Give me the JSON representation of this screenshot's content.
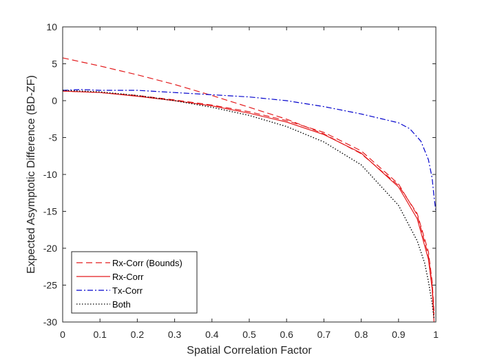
{
  "chart_data": {
    "type": "line",
    "title": "",
    "xlabel": "Spatial Correlation Factor",
    "ylabel": "Expected Asymptotic Difference (BD-ZF)",
    "xlim": [
      0,
      1
    ],
    "ylim": [
      -30,
      10
    ],
    "xticks": [
      0,
      0.1,
      0.2,
      0.3,
      0.4,
      0.5,
      0.6,
      0.7,
      0.8,
      0.9,
      1
    ],
    "xtick_labels": [
      "0",
      "0.1",
      "0.2",
      "0.3",
      "0.4",
      "0.5",
      "0.6",
      "0.7",
      "0.8",
      "0.9",
      "1"
    ],
    "yticks": [
      10,
      5,
      0,
      -5,
      -10,
      -15,
      -20,
      -25,
      -30
    ],
    "ytick_labels": [
      "10",
      "5",
      "0",
      "-5",
      "-10",
      "-15",
      "-20",
      "-25",
      "-30"
    ],
    "grid": false,
    "legend_position": "bottom-left",
    "series": [
      {
        "name": "Rx-Corr (Bounds)",
        "color": "#e31a1c",
        "style": "dashed",
        "x": [
          0,
          0.1,
          0.2,
          0.3,
          0.4,
          0.5,
          0.6,
          0.7,
          0.8,
          0.9,
          0.95,
          0.98,
          0.99,
          0.995
        ],
        "y": [
          5.8,
          4.7,
          3.5,
          2.2,
          0.7,
          -0.9,
          -2.5,
          -4.5,
          -7.2,
          -11.5,
          -15.3,
          -20.5,
          -24.5,
          -28.5
        ]
      },
      {
        "name": "Rx-Corr (Bounds)",
        "color": "#e31a1c",
        "style": "dashed",
        "x": [
          0,
          0.1,
          0.2,
          0.3,
          0.4,
          0.5,
          0.6,
          0.7,
          0.8,
          0.9,
          0.95,
          0.98,
          0.99,
          0.995
        ],
        "y": [
          1.3,
          1.1,
          0.7,
          0.1,
          -0.6,
          -1.5,
          -2.7,
          -4.3,
          -6.8,
          -11.3,
          -15.5,
          -21.0,
          -25.0,
          -29.0
        ]
      },
      {
        "name": "Rx-Corr",
        "color": "#e31a1c",
        "style": "solid",
        "x": [
          0,
          0.1,
          0.2,
          0.3,
          0.4,
          0.5,
          0.6,
          0.7,
          0.8,
          0.9,
          0.95,
          0.98,
          0.99,
          0.995
        ],
        "y": [
          1.3,
          1.1,
          0.6,
          0.0,
          -0.7,
          -1.7,
          -2.9,
          -4.6,
          -7.1,
          -11.7,
          -16.0,
          -21.5,
          -25.5,
          -30.0
        ]
      },
      {
        "name": "Tx-Corr",
        "color": "#0000cc",
        "style": "dashdot",
        "x": [
          0,
          0.05,
          0.1,
          0.2,
          0.3,
          0.4,
          0.5,
          0.6,
          0.7,
          0.8,
          0.85,
          0.9,
          0.93,
          0.96,
          0.98,
          0.99,
          0.995,
          1.0
        ],
        "y": [
          1.4,
          1.5,
          1.4,
          1.4,
          1.1,
          0.8,
          0.5,
          0.0,
          -0.8,
          -1.8,
          -2.4,
          -3.0,
          -3.8,
          -5.5,
          -8.0,
          -10.5,
          -13.0,
          -15.0
        ]
      },
      {
        "name": "Both",
        "color": "#000000",
        "style": "dotted",
        "x": [
          0,
          0.1,
          0.2,
          0.3,
          0.4,
          0.5,
          0.6,
          0.7,
          0.8,
          0.9,
          0.95,
          0.97,
          0.98,
          0.99,
          0.995
        ],
        "y": [
          1.4,
          1.2,
          0.7,
          0.0,
          -0.9,
          -2.0,
          -3.5,
          -5.6,
          -8.7,
          -14.2,
          -19.0,
          -22.0,
          -24.5,
          -27.5,
          -29.5
        ]
      }
    ],
    "legend": [
      {
        "label": "Rx-Corr (Bounds)",
        "color": "#e31a1c",
        "style": "dashed"
      },
      {
        "label": "Rx-Corr",
        "color": "#e31a1c",
        "style": "solid"
      },
      {
        "label": "Tx-Corr",
        "color": "#0000cc",
        "style": "dashdot"
      },
      {
        "label": "Both",
        "color": "#000000",
        "style": "dotted"
      }
    ]
  }
}
